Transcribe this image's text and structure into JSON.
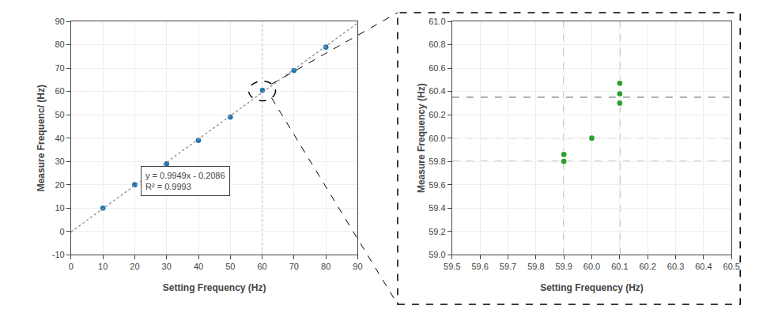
{
  "chart_data": [
    {
      "type": "scatter",
      "xlabel": "Setting Frequency (Hz)",
      "ylabel": "Measure Frequenc/ (Hz)",
      "xlim": [
        0,
        90
      ],
      "ylim": [
        -10,
        90
      ],
      "xticks": [
        0,
        10,
        20,
        30,
        40,
        50,
        60,
        70,
        80,
        90
      ],
      "yticks": [
        -10,
        0,
        10,
        20,
        30,
        40,
        50,
        60,
        70,
        80,
        90
      ],
      "grid": true,
      "series": [
        {
          "type": "scatter",
          "marker": "circle",
          "x": [
            10,
            20,
            30,
            40,
            50,
            59.9,
            59.9,
            60,
            60.1,
            60.1,
            60.1,
            70,
            80
          ],
          "values": [
            10,
            20,
            29,
            39,
            49,
            59.8,
            59.85,
            60.0,
            60.3,
            60.35,
            60.45,
            69,
            79
          ]
        },
        {
          "type": "line",
          "color": "#999999",
          "line_style": "dotted",
          "x": [
            0,
            90
          ],
          "values": [
            -0.2086,
            89.3324
          ]
        }
      ],
      "hlines": {
        "values": [
          60.0
        ],
        "color": "#bbbbbb",
        "line_style": "dotted"
      },
      "vlines": {
        "values": [
          59.9,
          60.0,
          60.1
        ],
        "color": "#bbbbbb",
        "line_style": "dotted"
      },
      "circle": {
        "x": 60.0,
        "y": 60.2,
        "radius": 4.2
      },
      "annotations": [
        {
          "x": 22,
          "y": 15,
          "lines": [
            "y = 0.9949x - 0.2086",
            "R² = 0.9993"
          ]
        }
      ]
    },
    {
      "type": "scatter",
      "xlabel": "Setting Frequency (Hz)",
      "ylabel": "Measure Frequency (Hz)",
      "xlim": [
        59.5,
        60.5
      ],
      "ylim": [
        59.0,
        61.0
      ],
      "xticks": [
        59.5,
        59.6,
        59.7,
        59.8,
        59.9,
        {
          "value": 60.0,
          "label": "60.0"
        },
        60.1,
        60.2,
        60.3,
        60.4,
        60.5
      ],
      "yticks": [
        {
          "value": 59.0,
          "label": "59.0"
        },
        59.2,
        59.4,
        59.6,
        59.8,
        {
          "value": 60.0,
          "label": "60.0"
        },
        60.2,
        60.4,
        60.6,
        60.8,
        {
          "value": 61.0,
          "label": "61.0"
        }
      ],
      "grid": true,
      "series": [
        {
          "type": "scatter",
          "marker": "circle",
          "x": [
            59.9,
            59.9,
            60.0,
            60.1,
            60.1,
            60.1
          ],
          "values": [
            59.8,
            59.86,
            60.0,
            60.3,
            60.38,
            60.47
          ]
        }
      ],
      "hlines": {
        "values": [
          59.8,
          60.0,
          60.35
        ],
        "color": "#666666",
        "line_style": "dashed"
      },
      "vlines": {
        "values": [
          59.9,
          60.0,
          60.1
        ],
        "color": "#666666",
        "line_style": "dashed"
      }
    }
  ]
}
